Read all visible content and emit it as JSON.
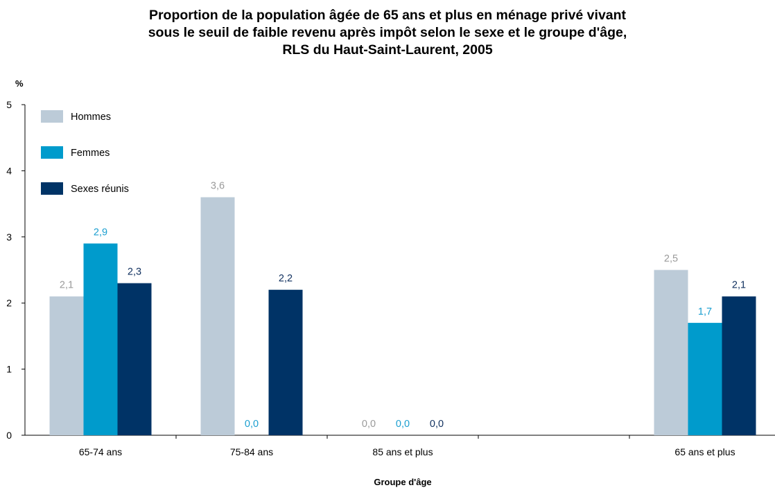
{
  "chart_data": {
    "type": "bar",
    "title_lines": [
      "Proportion de la population âgée de 65 ans et plus en ménage privé vivant",
      "sous le seuil de faible revenu après impôt selon le sexe et le groupe d'âge,",
      "RLS du Haut-Saint-Laurent, 2005"
    ],
    "ylabel": "%",
    "xlabel": "Groupe d'âge",
    "ylim": [
      0,
      5
    ],
    "yticks": [
      "0",
      "1",
      "2",
      "3",
      "4",
      "5"
    ],
    "categories": [
      "65-74 ans",
      "75-84 ans",
      "85 ans et plus",
      "",
      "65 ans et plus"
    ],
    "series": [
      {
        "name": "Hommes",
        "color": "#bccbd8",
        "labelColor": "#9a9a9a",
        "values": [
          2.1,
          3.6,
          0.0,
          null,
          2.5
        ],
        "labels": [
          "2,1",
          "3,6",
          "0,0",
          "",
          "2,5"
        ]
      },
      {
        "name": "Femmes",
        "color": "#009bcc",
        "labelColor": "#1b9fd0",
        "values": [
          2.9,
          0.0,
          0.0,
          null,
          1.7
        ],
        "labels": [
          "2,9",
          "0,0",
          "0,0",
          "",
          "1,7"
        ]
      },
      {
        "name": "Sexes réunis",
        "color": "#003366",
        "labelColor": "#0f2f5e",
        "values": [
          2.3,
          2.2,
          0.0,
          null,
          2.1
        ],
        "labels": [
          "2,3",
          "2,2",
          "0,0",
          "",
          "2,1"
        ]
      }
    ],
    "legend": "top-left",
    "grid": false
  }
}
